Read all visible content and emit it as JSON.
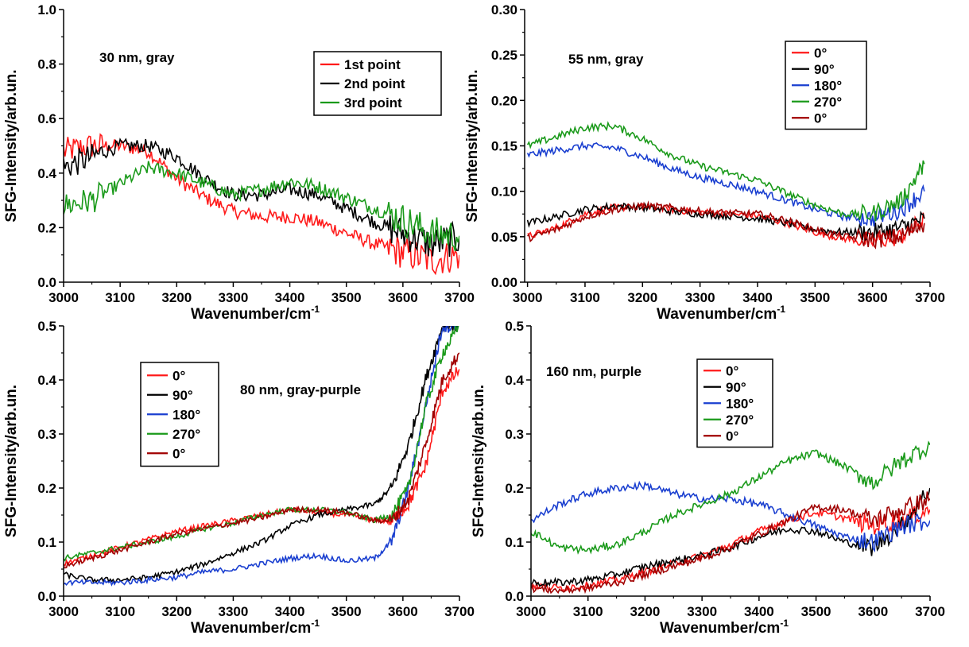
{
  "chart_data": [
    {
      "type": "line",
      "annotation": "30 nm, gray",
      "xlabel": "Wavenumber/cm",
      "xlabel_sup": "-1",
      "ylabel": "SFG-Intensity/arb.un.",
      "xlim": [
        3000,
        3700
      ],
      "ylim": [
        0,
        1.0
      ],
      "x_ticks": [
        3000,
        3100,
        3200,
        3300,
        3400,
        3500,
        3600,
        3700
      ],
      "y_ticks": [
        "0.0",
        "0.2",
        "0.4",
        "0.6",
        "0.8",
        "1.0"
      ],
      "legend_position": "top-right",
      "legend_framed": true,
      "series": [
        {
          "name": "1st point",
          "color": "#ff1a1a",
          "noise": 0.025,
          "x": [
            3000,
            3050,
            3100,
            3150,
            3200,
            3250,
            3300,
            3350,
            3400,
            3450,
            3500,
            3550,
            3600,
            3650,
            3700
          ],
          "y": [
            0.48,
            0.5,
            0.5,
            0.48,
            0.38,
            0.31,
            0.26,
            0.24,
            0.24,
            0.22,
            0.18,
            0.14,
            0.11,
            0.08,
            0.1
          ]
        },
        {
          "name": "2nd point",
          "color": "#000000",
          "noise": 0.025,
          "x": [
            3000,
            3050,
            3100,
            3150,
            3200,
            3250,
            3300,
            3350,
            3400,
            3450,
            3500,
            3550,
            3600,
            3650,
            3700
          ],
          "y": [
            0.42,
            0.46,
            0.5,
            0.5,
            0.46,
            0.38,
            0.32,
            0.32,
            0.34,
            0.32,
            0.27,
            0.22,
            0.18,
            0.14,
            0.16
          ]
        },
        {
          "name": "3rd point",
          "color": "#1a9a1a",
          "noise": 0.025,
          "x": [
            3000,
            3050,
            3100,
            3150,
            3200,
            3250,
            3300,
            3350,
            3400,
            3450,
            3500,
            3550,
            3600,
            3650,
            3700
          ],
          "y": [
            0.28,
            0.3,
            0.36,
            0.42,
            0.4,
            0.36,
            0.32,
            0.34,
            0.37,
            0.35,
            0.31,
            0.27,
            0.23,
            0.18,
            0.17
          ]
        }
      ]
    },
    {
      "type": "line",
      "annotation": "55 nm, gray",
      "xlabel": "Wavenumber/cm",
      "xlabel_sup": "-1",
      "ylabel": "SFG-Intensity/arb.un.",
      "xlim": [
        2995,
        3700
      ],
      "ylim": [
        0,
        0.3
      ],
      "x_ticks": [
        3000,
        3100,
        3200,
        3300,
        3400,
        3500,
        3600,
        3700
      ],
      "y_ticks": [
        "0.00",
        "0.05",
        "0.10",
        "0.15",
        "0.20",
        "0.25",
        "0.30"
      ],
      "legend_position": "top-right",
      "legend_framed": true,
      "series": [
        {
          "name": "0°",
          "color": "#ff1a1a",
          "noise": 0.004,
          "x": [
            3000,
            3050,
            3100,
            3150,
            3200,
            3250,
            3300,
            3350,
            3400,
            3450,
            3500,
            3550,
            3600,
            3650,
            3690
          ],
          "y": [
            0.05,
            0.06,
            0.075,
            0.082,
            0.083,
            0.08,
            0.077,
            0.075,
            0.073,
            0.065,
            0.055,
            0.048,
            0.045,
            0.05,
            0.07
          ]
        },
        {
          "name": "90°",
          "color": "#000000",
          "noise": 0.004,
          "x": [
            3000,
            3050,
            3100,
            3150,
            3200,
            3250,
            3300,
            3350,
            3400,
            3450,
            3500,
            3550,
            3600,
            3650,
            3690
          ],
          "y": [
            0.065,
            0.072,
            0.08,
            0.084,
            0.082,
            0.078,
            0.075,
            0.073,
            0.07,
            0.065,
            0.058,
            0.055,
            0.055,
            0.06,
            0.07
          ]
        },
        {
          "name": "180°",
          "color": "#1a3fd0",
          "noise": 0.004,
          "x": [
            3000,
            3050,
            3100,
            3150,
            3200,
            3250,
            3300,
            3350,
            3400,
            3450,
            3500,
            3550,
            3600,
            3650,
            3690
          ],
          "y": [
            0.14,
            0.145,
            0.15,
            0.148,
            0.138,
            0.125,
            0.115,
            0.108,
            0.1,
            0.09,
            0.08,
            0.072,
            0.07,
            0.08,
            0.1
          ]
        },
        {
          "name": "270°",
          "color": "#1a9a1a",
          "noise": 0.004,
          "x": [
            3000,
            3050,
            3100,
            3150,
            3200,
            3250,
            3300,
            3350,
            3400,
            3450,
            3500,
            3550,
            3600,
            3650,
            3690
          ],
          "y": [
            0.15,
            0.16,
            0.17,
            0.172,
            0.158,
            0.14,
            0.128,
            0.12,
            0.112,
            0.098,
            0.085,
            0.075,
            0.075,
            0.09,
            0.13
          ]
        },
        {
          "name": "0°",
          "color": "#a00000",
          "noise": 0.004,
          "x": [
            3000,
            3050,
            3100,
            3150,
            3200,
            3250,
            3300,
            3350,
            3400,
            3450,
            3500,
            3550,
            3600,
            3650,
            3690
          ],
          "y": [
            0.048,
            0.058,
            0.072,
            0.08,
            0.084,
            0.082,
            0.078,
            0.076,
            0.075,
            0.068,
            0.058,
            0.05,
            0.047,
            0.05,
            0.065
          ]
        }
      ]
    },
    {
      "type": "line",
      "annotation": "80 nm, gray-purple",
      "xlabel": "Wavenumber/cm",
      "xlabel_sup": "-1",
      "ylabel": "SFG-Intensity/arb.un.",
      "xlim": [
        3000,
        3700
      ],
      "ylim": [
        0,
        0.5
      ],
      "x_ticks": [
        3000,
        3100,
        3200,
        3300,
        3400,
        3500,
        3600,
        3700
      ],
      "y_ticks": [
        "0.0",
        "0.1",
        "0.2",
        "0.3",
        "0.4",
        "0.5"
      ],
      "legend_position": "top-left",
      "legend_framed": true,
      "series": [
        {
          "name": "0°",
          "color": "#ff1a1a",
          "noise": 0.005,
          "x": [
            3000,
            3050,
            3100,
            3150,
            3200,
            3250,
            3300,
            3350,
            3400,
            3450,
            3500,
            3550,
            3580,
            3610,
            3640,
            3670,
            3700
          ],
          "y": [
            0.06,
            0.075,
            0.09,
            0.105,
            0.12,
            0.13,
            0.14,
            0.15,
            0.16,
            0.155,
            0.15,
            0.14,
            0.14,
            0.17,
            0.24,
            0.38,
            0.42
          ]
        },
        {
          "name": "90°",
          "color": "#000000",
          "noise": 0.005,
          "x": [
            3000,
            3050,
            3100,
            3150,
            3200,
            3250,
            3300,
            3350,
            3400,
            3450,
            3500,
            3550,
            3580,
            3610,
            3640,
            3670,
            3700
          ],
          "y": [
            0.04,
            0.03,
            0.03,
            0.035,
            0.045,
            0.06,
            0.08,
            0.1,
            0.13,
            0.15,
            0.16,
            0.17,
            0.2,
            0.28,
            0.4,
            0.5,
            0.5
          ]
        },
        {
          "name": "180°",
          "color": "#1a3fd0",
          "noise": 0.005,
          "x": [
            3000,
            3050,
            3100,
            3150,
            3200,
            3250,
            3300,
            3350,
            3400,
            3450,
            3500,
            3550,
            3580,
            3610,
            3640,
            3670,
            3700
          ],
          "y": [
            0.025,
            0.025,
            0.025,
            0.03,
            0.035,
            0.045,
            0.05,
            0.06,
            0.07,
            0.075,
            0.065,
            0.07,
            0.1,
            0.2,
            0.35,
            0.5,
            0.5
          ]
        },
        {
          "name": "270°",
          "color": "#1a9a1a",
          "noise": 0.005,
          "x": [
            3000,
            3050,
            3100,
            3150,
            3200,
            3250,
            3300,
            3350,
            3400,
            3450,
            3500,
            3550,
            3580,
            3610,
            3640,
            3670,
            3700
          ],
          "y": [
            0.07,
            0.08,
            0.09,
            0.1,
            0.11,
            0.125,
            0.135,
            0.15,
            0.16,
            0.16,
            0.155,
            0.14,
            0.15,
            0.2,
            0.35,
            0.45,
            0.5
          ]
        },
        {
          "name": "0°",
          "color": "#a00000",
          "noise": 0.005,
          "x": [
            3000,
            3050,
            3100,
            3150,
            3200,
            3250,
            3300,
            3350,
            3400,
            3450,
            3500,
            3550,
            3580,
            3610,
            3640,
            3670,
            3700
          ],
          "y": [
            0.055,
            0.07,
            0.085,
            0.1,
            0.115,
            0.125,
            0.135,
            0.145,
            0.16,
            0.16,
            0.155,
            0.14,
            0.14,
            0.18,
            0.28,
            0.4,
            0.45
          ]
        }
      ]
    },
    {
      "type": "line",
      "annotation": "160 nm, purple",
      "xlabel": "Wavenumber/cm",
      "xlabel_sup": "-1",
      "ylabel": "SFG-Intensity/arb.un.",
      "xlim": [
        3000,
        3700
      ],
      "ylim": [
        0,
        0.5
      ],
      "x_ticks": [
        3000,
        3100,
        3200,
        3300,
        3400,
        3500,
        3600,
        3700
      ],
      "y_ticks": [
        "0.0",
        "0.1",
        "0.2",
        "0.3",
        "0.4",
        "0.5"
      ],
      "legend_position": "top-left",
      "legend_framed": true,
      "series": [
        {
          "name": "0°",
          "color": "#ff1a1a",
          "noise": 0.007,
          "x": [
            3000,
            3050,
            3100,
            3150,
            3200,
            3250,
            3300,
            3350,
            3400,
            3450,
            3500,
            3550,
            3600,
            3650,
            3700
          ],
          "y": [
            0.02,
            0.015,
            0.02,
            0.03,
            0.045,
            0.06,
            0.075,
            0.095,
            0.12,
            0.14,
            0.155,
            0.145,
            0.13,
            0.14,
            0.16
          ]
        },
        {
          "name": "90°",
          "color": "#000000",
          "noise": 0.007,
          "x": [
            3000,
            3050,
            3100,
            3150,
            3200,
            3250,
            3300,
            3350,
            3400,
            3450,
            3500,
            3550,
            3600,
            3650,
            3700
          ],
          "y": [
            0.025,
            0.025,
            0.03,
            0.04,
            0.055,
            0.065,
            0.075,
            0.09,
            0.11,
            0.125,
            0.12,
            0.1,
            0.09,
            0.13,
            0.2
          ]
        },
        {
          "name": "180°",
          "color": "#1a3fd0",
          "noise": 0.007,
          "x": [
            3000,
            3050,
            3100,
            3150,
            3200,
            3250,
            3300,
            3350,
            3400,
            3450,
            3500,
            3550,
            3600,
            3650,
            3700
          ],
          "y": [
            0.14,
            0.17,
            0.19,
            0.2,
            0.205,
            0.19,
            0.18,
            0.18,
            0.17,
            0.15,
            0.13,
            0.11,
            0.1,
            0.13,
            0.14
          ]
        },
        {
          "name": "270°",
          "color": "#1a9a1a",
          "noise": 0.007,
          "x": [
            3000,
            3050,
            3100,
            3150,
            3200,
            3250,
            3300,
            3350,
            3400,
            3450,
            3500,
            3550,
            3600,
            3650,
            3700
          ],
          "y": [
            0.12,
            0.09,
            0.085,
            0.095,
            0.12,
            0.15,
            0.17,
            0.19,
            0.22,
            0.25,
            0.265,
            0.24,
            0.21,
            0.25,
            0.28
          ]
        },
        {
          "name": "0°",
          "color": "#a00000",
          "noise": 0.007,
          "x": [
            3000,
            3050,
            3100,
            3150,
            3200,
            3250,
            3300,
            3350,
            3400,
            3450,
            3500,
            3550,
            3600,
            3650,
            3700
          ],
          "y": [
            0.015,
            0.01,
            0.015,
            0.025,
            0.04,
            0.055,
            0.07,
            0.09,
            0.115,
            0.14,
            0.165,
            0.16,
            0.14,
            0.16,
            0.18
          ]
        }
      ]
    }
  ]
}
